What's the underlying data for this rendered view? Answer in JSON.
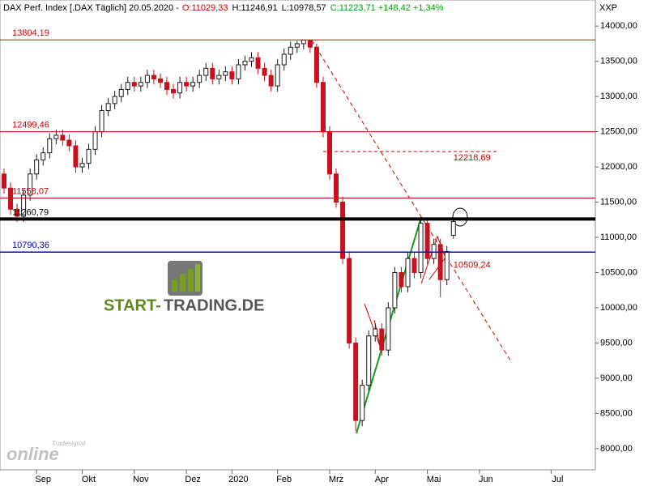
{
  "chart_data": {
    "type": "candlestick",
    "title": "DAX Perf. Index [.DAX  Täglich] 20.05.2020 -",
    "quote": [
      {
        "text": "O:11029,33",
        "color": "#d00000"
      },
      {
        "text": "H:11246,91",
        "color": "#000000"
      },
      {
        "text": "L:10978,57",
        "color": "#000000"
      },
      {
        "text": "C:11223,71 +148,42 +1,34%",
        "color": "#00a000"
      }
    ],
    "axis_unit": "XXP",
    "up_color": "#1a1a1a",
    "down_color": "#c8101e",
    "categories": [
      null,
      null,
      null,
      null,
      null,
      "Sep",
      null,
      null,
      null,
      null,
      null,
      null,
      "Okt",
      null,
      null,
      null,
      null,
      null,
      null,
      null,
      "Nov",
      null,
      null,
      null,
      null,
      null,
      null,
      null,
      "Dez",
      null,
      null,
      null,
      null,
      null,
      null,
      "2020",
      null,
      null,
      null,
      null,
      null,
      null,
      "Feb",
      null,
      null,
      null,
      null,
      null,
      null,
      null,
      "Mrz",
      null,
      null,
      null,
      null,
      null,
      null,
      "Apr",
      null,
      null,
      null,
      null,
      null,
      null,
      null,
      "Mai",
      null,
      null,
      null,
      null,
      null,
      null,
      null,
      "Jun",
      null,
      null,
      null,
      null,
      null,
      null,
      null,
      null,
      null,
      null,
      "Jul",
      null
    ],
    "open": [
      11900,
      11700,
      11400,
      11300,
      11600,
      11900,
      12100,
      12200,
      12400,
      12450,
      12380,
      12300,
      12000,
      12050,
      12250,
      12500,
      12800,
      12900,
      13000,
      13100,
      13200,
      13150,
      13200,
      13300,
      13250,
      13200,
      13100,
      13050,
      13200,
      13150,
      13200,
      13300,
      13400,
      13250,
      13300,
      13350,
      13250,
      13450,
      13500,
      13550,
      13400,
      13300,
      13150,
      13450,
      13600,
      13700,
      13750,
      13800,
      13700,
      13200,
      12500,
      11900,
      11500,
      10700,
      9500,
      8400,
      8900,
      9600,
      9700,
      9400,
      10000,
      10500,
      10300,
      10700,
      10500,
      11200,
      10700,
      10900,
      10400,
      11029.33,
      null,
      null,
      null,
      null,
      null,
      null,
      null,
      null,
      null,
      null,
      null,
      null,
      null,
      null,
      null,
      null
    ],
    "high": [
      11980,
      11780,
      11480,
      11680,
      11980,
      12180,
      12280,
      12480,
      12530,
      12530,
      12460,
      12380,
      12130,
      12330,
      12580,
      12880,
      12980,
      13080,
      13180,
      13280,
      13280,
      13280,
      13380,
      13380,
      13330,
      13280,
      13180,
      13280,
      13280,
      13280,
      13380,
      13480,
      13480,
      13380,
      13430,
      13430,
      13530,
      13580,
      13630,
      13630,
      13480,
      13380,
      13530,
      13680,
      13780,
      13790,
      13804.19,
      13780,
      13750,
      13280,
      12580,
      11980,
      11580,
      10780,
      9580,
      8980,
      9680,
      9780,
      9780,
      10080,
      10580,
      10580,
      10780,
      10780,
      11280,
      11280,
      10980,
      10980,
      10880,
      11246.91,
      null,
      null,
      null,
      null,
      null,
      null,
      null,
      null,
      null,
      null,
      null,
      null,
      null,
      null,
      null,
      null
    ],
    "low": [
      11620,
      11320,
      11220,
      11220,
      11520,
      11820,
      12020,
      12120,
      12320,
      12300,
      12220,
      11920,
      11920,
      11970,
      12170,
      12420,
      12720,
      12820,
      12920,
      13020,
      13070,
      13070,
      13120,
      13170,
      13120,
      13020,
      12970,
      12970,
      13070,
      13070,
      13120,
      13220,
      13170,
      13170,
      13220,
      13170,
      13170,
      13370,
      13420,
      13320,
      13220,
      13070,
      13070,
      13370,
      13520,
      13620,
      13670,
      13620,
      13120,
      12420,
      11820,
      11420,
      10620,
      9420,
      8250,
      8320,
      8820,
      9520,
      9320,
      9320,
      9920,
      10220,
      10220,
      10420,
      10420,
      10620,
      10620,
      10150,
      10320,
      10978.57,
      null,
      null,
      null,
      null,
      null,
      null,
      null,
      null,
      null,
      null,
      null,
      null,
      null,
      null,
      null,
      null
    ],
    "close": [
      11700,
      11400,
      11300,
      11600,
      11900,
      12100,
      12200,
      12400,
      12450,
      12380,
      12300,
      12000,
      12050,
      12250,
      12500,
      12800,
      12900,
      13000,
      13100,
      13200,
      13150,
      13200,
      13300,
      13250,
      13200,
      13100,
      13050,
      13200,
      13150,
      13200,
      13300,
      13400,
      13250,
      13300,
      13350,
      13250,
      13450,
      13500,
      13550,
      13400,
      13300,
      13150,
      13450,
      13600,
      13700,
      13750,
      13800,
      13700,
      13200,
      12500,
      11900,
      11500,
      10700,
      9500,
      8400,
      8900,
      9600,
      9700,
      9400,
      10000,
      10500,
      10300,
      10700,
      10500,
      11200,
      10700,
      10900,
      10400,
      10800,
      11223.71,
      null,
      null,
      null,
      null,
      null,
      null,
      null,
      null,
      null,
      null,
      null,
      null,
      null,
      null,
      null,
      null
    ],
    "ylim": [
      7700,
      14370
    ],
    "yticks": [
      {
        "value": 8000,
        "label": "8000,00"
      },
      {
        "value": 8500,
        "label": "8500,00"
      },
      {
        "value": 9000,
        "label": "9000,00"
      },
      {
        "value": 9500,
        "label": "9500,00"
      },
      {
        "value": 10000,
        "label": "10000,00"
      },
      {
        "value": 10500,
        "label": "10500,00"
      },
      {
        "value": 11000,
        "label": "11000,00"
      },
      {
        "value": 11500,
        "label": "11500,00"
      },
      {
        "value": 12000,
        "label": "12000,00"
      },
      {
        "value": 12500,
        "label": "12500,00"
      },
      {
        "value": 13000,
        "label": "13000,00"
      },
      {
        "value": 13500,
        "label": "13500,00"
      },
      {
        "value": 14000,
        "label": "14000,00"
      }
    ],
    "levels": [
      {
        "value": 13804.19,
        "label": "13804,19",
        "color": "#d00000",
        "width": 1
      },
      {
        "value": 12499.46,
        "label": "12499,46",
        "color": "#d00000",
        "width": 1
      },
      {
        "value": 11558.07,
        "label": "11558,07",
        "color": "#d00000",
        "width": 1
      },
      {
        "value": 11260.79,
        "label": "11260,79",
        "color": "#000000",
        "width": 4
      },
      {
        "value": 10790.36,
        "label": "10790,36",
        "color": "#0000d0",
        "width": 1.5
      }
    ],
    "annotations": [
      {
        "value": 12218.69,
        "label": "12218,69",
        "color": "#d00000"
      },
      {
        "value": 10509.24,
        "label": "10509,24",
        "color": "#d00000"
      }
    ],
    "logos": {
      "brand_a": "START-",
      "brand_b": "TRADING.DE",
      "vendor": "Tradesignal",
      "vendor_b": "online"
    }
  }
}
